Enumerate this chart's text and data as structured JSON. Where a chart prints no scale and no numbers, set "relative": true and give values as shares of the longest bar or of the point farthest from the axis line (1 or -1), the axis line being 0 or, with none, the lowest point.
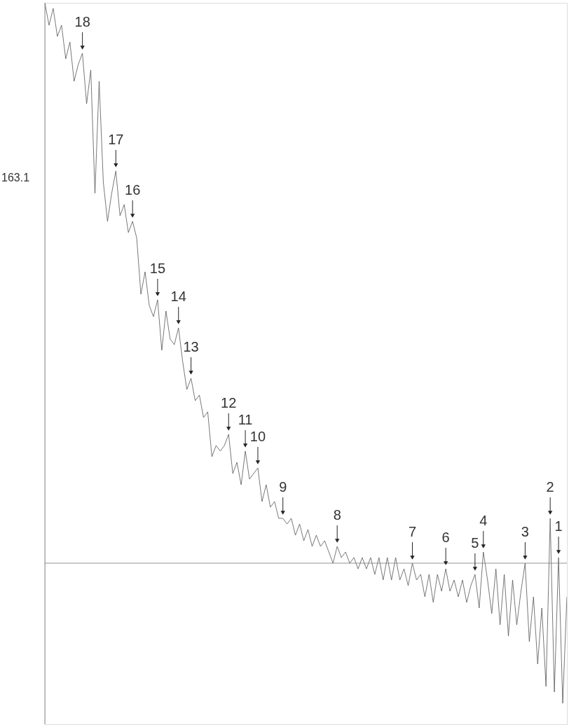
{
  "chart_data": {
    "type": "line",
    "relative": true,
    "color": "#555555",
    "annotations": [
      "163.1",
      {
        "text": "18",
        "y": 0.91
      },
      {
        "text": "17",
        "y": 0.7
      },
      {
        "text": "16",
        "y": 0.61
      },
      {
        "text": "15",
        "y": 0.47
      },
      {
        "text": "14",
        "y": 0.42
      },
      {
        "text": "13",
        "y": 0.33
      },
      {
        "text": "12",
        "y": 0.23
      },
      {
        "text": "11",
        "y": 0.2
      },
      {
        "text": "10",
        "y": 0.17
      },
      {
        "text": "9",
        "y": 0.08
      },
      {
        "text": "8",
        "y": 0.03
      },
      {
        "text": "7",
        "y": 0.0
      },
      {
        "text": "6",
        "y": -0.01
      },
      {
        "text": "5",
        "y": -0.02
      },
      {
        "text": "4",
        "y": 0.02
      },
      {
        "text": "3",
        "y": 0.0
      },
      {
        "text": "2",
        "y": 0.08
      },
      {
        "text": "1",
        "y": 0.01
      }
    ],
    "categories": [
      null,
      null,
      null,
      null,
      null,
      null,
      null,
      null,
      null,
      null,
      null,
      null,
      null,
      null,
      null,
      null,
      null,
      null,
      null,
      null,
      null,
      null,
      null,
      null,
      null,
      null,
      null,
      null,
      null,
      null,
      null,
      null,
      null,
      null,
      null,
      null,
      null,
      null,
      null,
      null,
      null,
      null,
      null,
      null,
      null,
      null,
      null,
      null,
      null,
      null,
      null,
      null,
      null,
      null,
      null,
      null,
      null,
      null,
      null,
      null,
      null,
      null,
      null,
      null,
      null,
      null,
      null,
      null,
      null,
      null,
      null,
      null,
      null,
      null,
      null,
      null,
      null,
      null,
      null,
      null,
      null,
      null,
      null,
      null,
      null,
      null,
      null,
      null,
      null,
      null,
      null,
      null,
      null,
      null,
      null,
      null,
      null,
      null,
      null,
      null,
      null,
      null,
      null,
      null,
      null,
      null,
      null,
      null,
      null,
      null,
      null,
      null,
      null,
      null,
      null,
      null,
      null,
      null,
      null,
      null,
      null,
      null,
      null,
      null,
      null,
      null
    ],
    "values": [
      1.0,
      0.96,
      0.99,
      0.94,
      0.96,
      0.9,
      0.93,
      0.86,
      0.89,
      0.91,
      0.82,
      0.88,
      0.66,
      0.86,
      0.68,
      0.61,
      0.66,
      0.7,
      0.62,
      0.64,
      0.59,
      0.61,
      0.58,
      0.48,
      0.52,
      0.46,
      0.44,
      0.47,
      0.38,
      0.45,
      0.4,
      0.39,
      0.42,
      0.36,
      0.31,
      0.33,
      0.29,
      0.3,
      0.26,
      0.27,
      0.19,
      0.21,
      0.2,
      0.21,
      0.23,
      0.16,
      0.18,
      0.14,
      0.2,
      0.15,
      0.16,
      0.17,
      0.11,
      0.14,
      0.1,
      0.11,
      0.08,
      0.08,
      0.07,
      0.08,
      0.05,
      0.07,
      0.04,
      0.06,
      0.03,
      0.05,
      0.03,
      0.04,
      0.02,
      0.0,
      0.03,
      0.01,
      0.02,
      0.0,
      0.01,
      -0.01,
      0.01,
      -0.01,
      0.01,
      -0.02,
      0.01,
      -0.03,
      0.01,
      -0.03,
      0.01,
      -0.03,
      -0.01,
      -0.04,
      0.0,
      -0.03,
      -0.02,
      -0.06,
      -0.02,
      -0.07,
      -0.02,
      -0.05,
      -0.01,
      -0.05,
      -0.03,
      -0.06,
      -0.03,
      -0.07,
      -0.04,
      -0.02,
      -0.08,
      0.02,
      -0.03,
      -0.09,
      -0.01,
      -0.11,
      -0.02,
      -0.13,
      -0.03,
      -0.11,
      -0.05,
      0.0,
      -0.14,
      -0.06,
      -0.18,
      -0.08,
      -0.22,
      0.08,
      -0.23,
      0.01,
      -0.25,
      -0.06
    ]
  }
}
